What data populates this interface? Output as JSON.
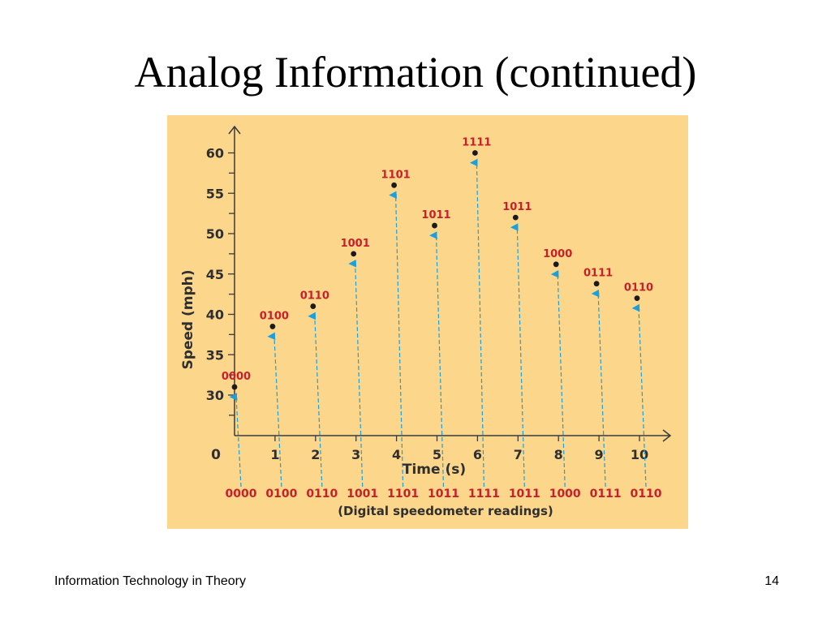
{
  "slide": {
    "title": "Analog Information (continued)",
    "footer_left": "Information Technology in Theory",
    "page_number": "14"
  },
  "colors": {
    "panel_bg": "#fcd68a",
    "axis": "#3a3a3a",
    "code_label": "#c8202b",
    "sample_arrow": "#1aa0de",
    "point": "#1a1a1a"
  },
  "chart_data": {
    "type": "scatter",
    "xlabel": "Time (s)",
    "ylabel": "Speed (mph)",
    "caption": "(Digital speedometer readings)",
    "origin_label": "0",
    "x_ticks": [
      "1",
      "2",
      "3",
      "4",
      "5",
      "6",
      "7",
      "8",
      "9",
      "10"
    ],
    "y_ticks": [
      "30",
      "35",
      "40",
      "45",
      "50",
      "55",
      "60"
    ],
    "xlim": [
      0,
      10.8
    ],
    "ylim": [
      25,
      62
    ],
    "grid": false,
    "points": [
      {
        "x": 0,
        "y": 31,
        "code": "0000"
      },
      {
        "x": 1,
        "y": 38.5,
        "code": "0100"
      },
      {
        "x": 2,
        "y": 41,
        "code": "0110"
      },
      {
        "x": 3,
        "y": 47.5,
        "code": "1001"
      },
      {
        "x": 4,
        "y": 56,
        "code": "1101"
      },
      {
        "x": 5,
        "y": 51,
        "code": "1011"
      },
      {
        "x": 6,
        "y": 60,
        "code": "1111"
      },
      {
        "x": 7,
        "y": 52,
        "code": "1011"
      },
      {
        "x": 8,
        "y": 46.2,
        "code": "1000"
      },
      {
        "x": 9,
        "y": 43.8,
        "code": "0111"
      },
      {
        "x": 10,
        "y": 42,
        "code": "0110"
      }
    ],
    "readings": [
      "0000",
      "0100",
      "0110",
      "1001",
      "1101",
      "1011",
      "1111",
      "1011",
      "1000",
      "0111",
      "0110"
    ]
  }
}
